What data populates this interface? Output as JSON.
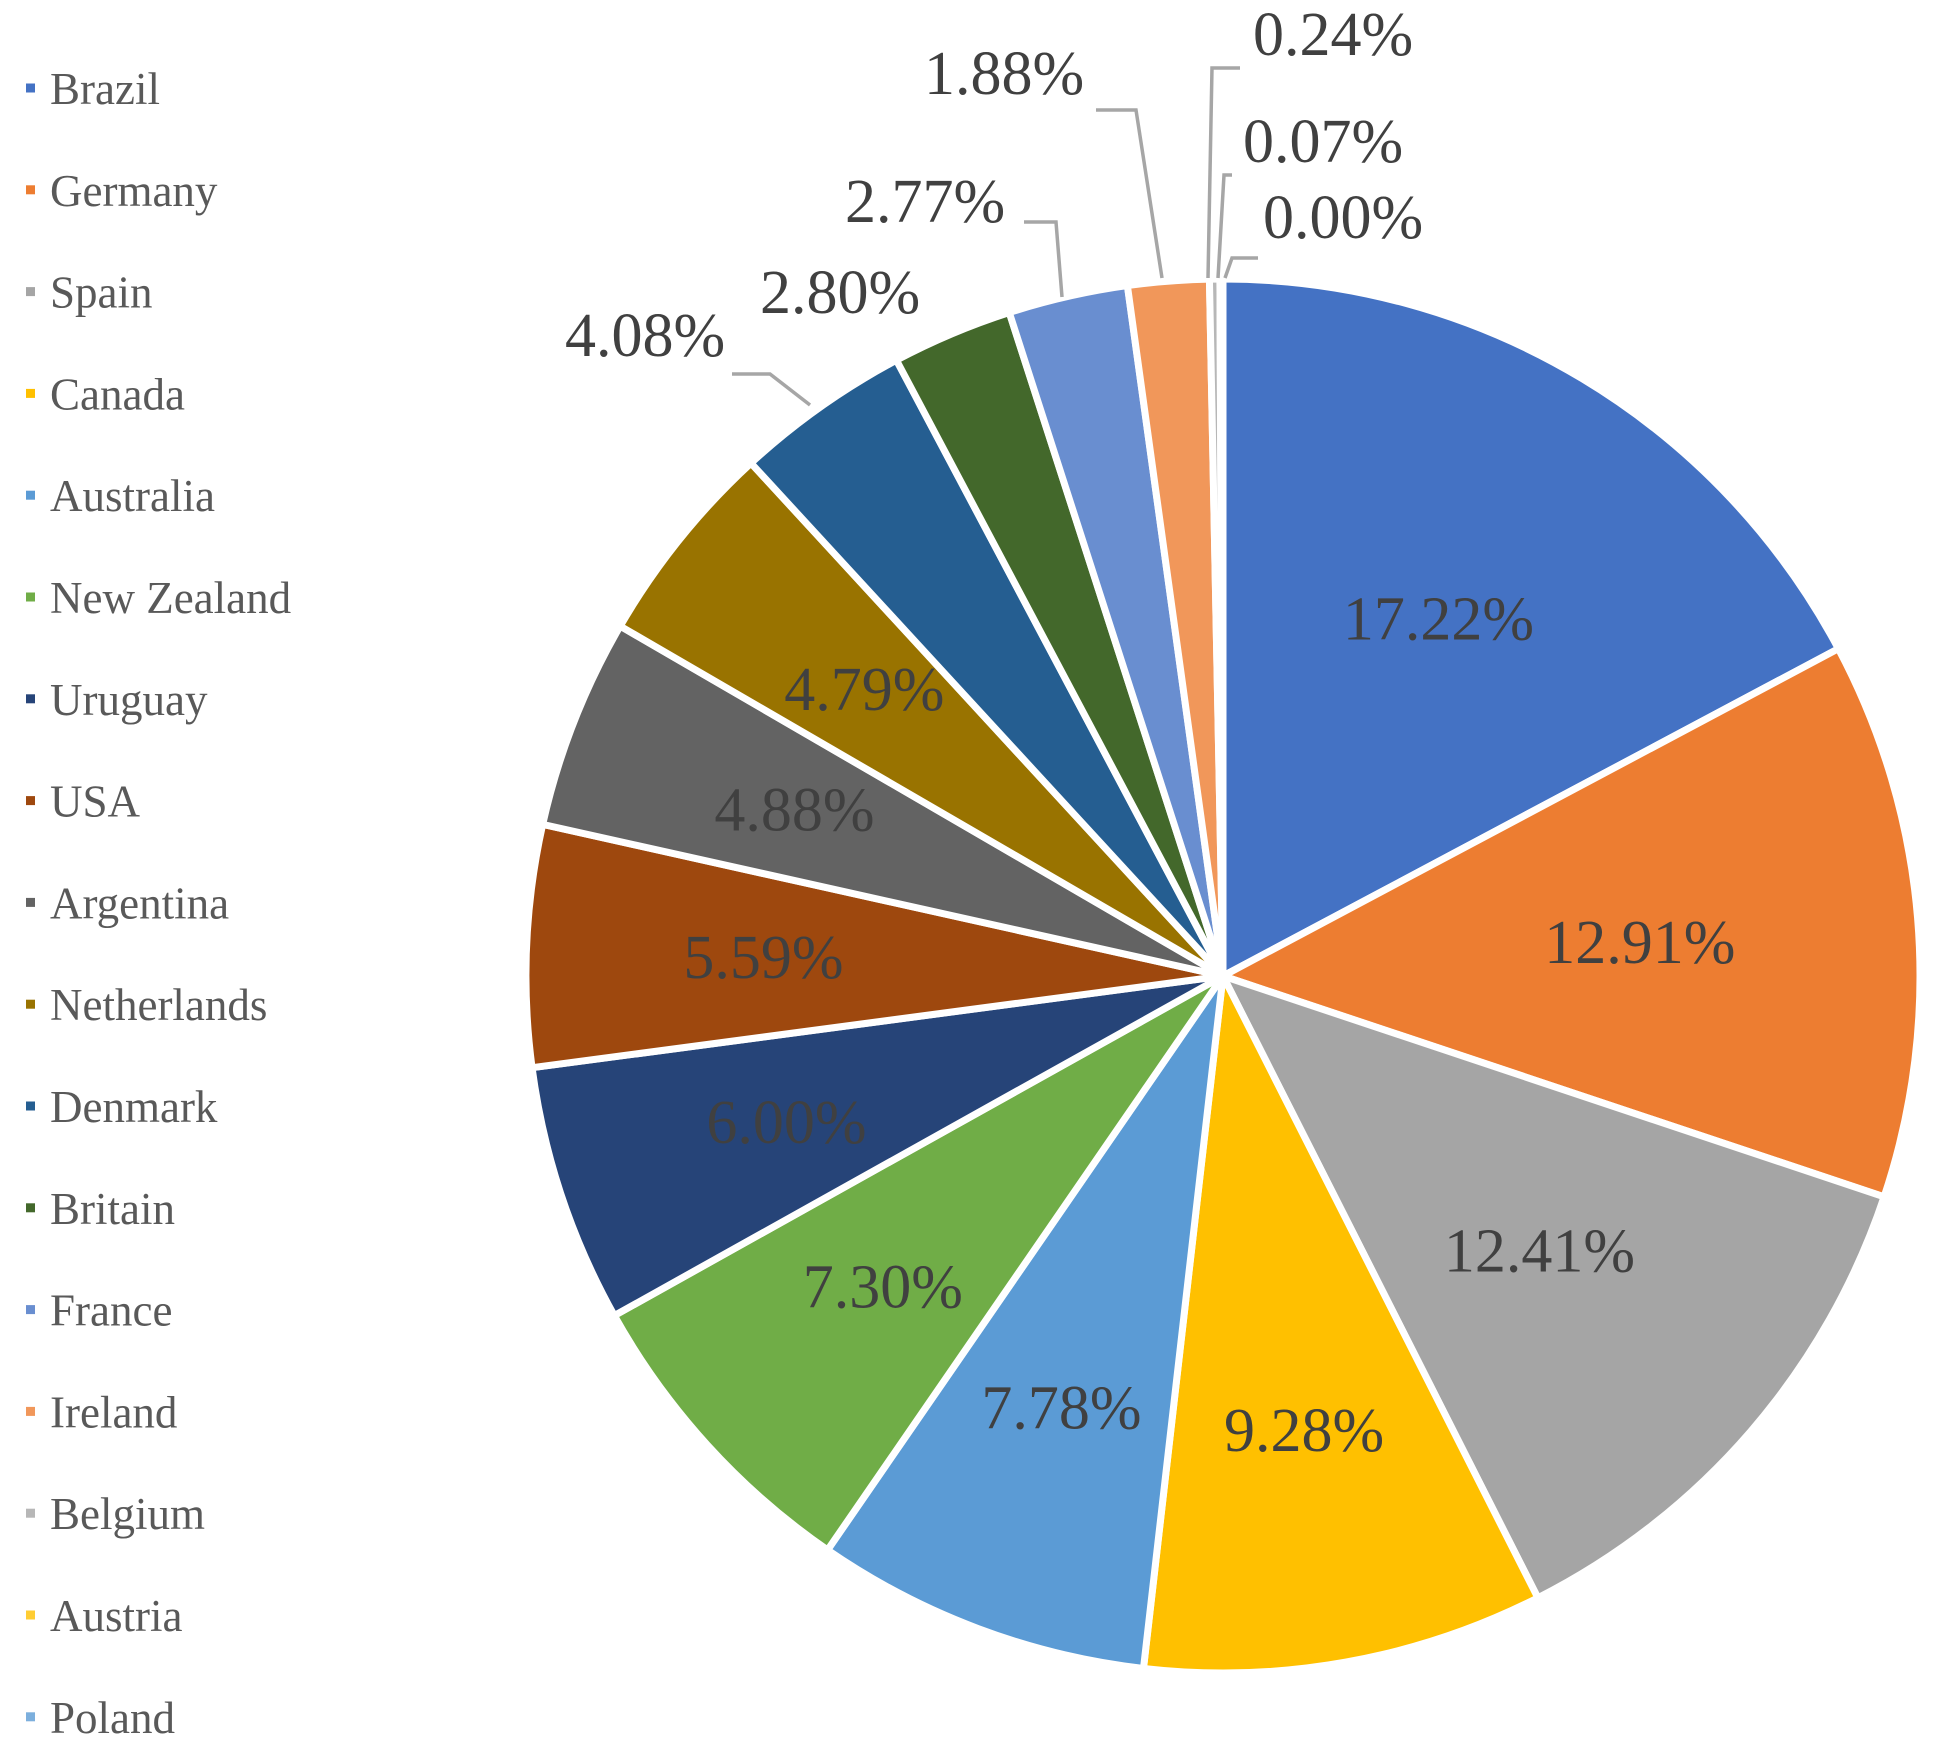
{
  "chart_data": {
    "type": "pie",
    "title": "",
    "legend_position": "left",
    "start_angle_deg": 0,
    "direction": "clockwise",
    "slices": [
      {
        "name": "Brazil",
        "value": 17.22,
        "label": "17.22%",
        "color": "#4472C4",
        "label_placement": "inside"
      },
      {
        "name": "Germany",
        "value": 12.91,
        "label": "12.91%",
        "color": "#ED7D31",
        "label_placement": "inside"
      },
      {
        "name": "Spain",
        "value": 12.41,
        "label": "12.41%",
        "color": "#A5A5A5",
        "label_placement": "inside"
      },
      {
        "name": "Canada",
        "value": 9.28,
        "label": "9.28%",
        "color": "#FFC000",
        "label_placement": "inside"
      },
      {
        "name": "Australia",
        "value": 7.78,
        "label": "7.78%",
        "color": "#5B9BD5",
        "label_placement": "inside"
      },
      {
        "name": "New Zealand",
        "value": 7.3,
        "label": "7.30%",
        "color": "#70AD47",
        "label_placement": "inside"
      },
      {
        "name": "Uruguay",
        "value": 6.0,
        "label": "6.00%",
        "color": "#264478",
        "label_placement": "inside"
      },
      {
        "name": "USA",
        "value": 5.59,
        "label": "5.59%",
        "color": "#9E480E",
        "label_placement": "inside"
      },
      {
        "name": "Argentina",
        "value": 4.88,
        "label": "4.88%",
        "color": "#636363",
        "label_placement": "inside"
      },
      {
        "name": "Netherlands",
        "value": 4.79,
        "label": "4.79%",
        "color": "#997300",
        "label_placement": "inside"
      },
      {
        "name": "Denmark",
        "value": 4.08,
        "label": "4.08%",
        "color": "#255E91",
        "label_placement": "outside"
      },
      {
        "name": "Britain",
        "value": 2.8,
        "label": "2.80%",
        "color": "#43682B",
        "label_placement": "outside"
      },
      {
        "name": "France",
        "value": 2.77,
        "label": "2.77%",
        "color": "#698ED0",
        "label_placement": "outside"
      },
      {
        "name": "Ireland",
        "value": 1.88,
        "label": "1.88%",
        "color": "#F1975A",
        "label_placement": "outside"
      },
      {
        "name": "Belgium",
        "value": 0.24,
        "label": "0.24%",
        "color": "#B7B7B7",
        "label_placement": "outside"
      },
      {
        "name": "Austria",
        "value": 0.07,
        "label": "0.07%",
        "color": "#FFCD33",
        "label_placement": "outside"
      },
      {
        "name": "Poland",
        "value": 0.0,
        "label": "0.00%",
        "color": "#7CAFDD",
        "label_placement": "outside"
      }
    ]
  }
}
